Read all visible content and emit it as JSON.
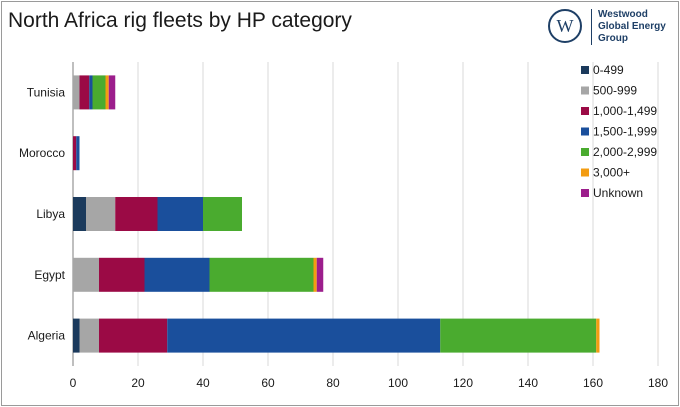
{
  "title": "North Africa rig fleets by HP category",
  "logo": {
    "mark": "W",
    "lines": [
      "Westwood",
      "Global Energy",
      "Group"
    ]
  },
  "chart_data": {
    "type": "bar",
    "orientation": "horizontal",
    "stacked": true,
    "title": "North Africa rig fleets by HP category",
    "categories": [
      "Tunisia",
      "Morocco",
      "Libya",
      "Egypt",
      "Algeria"
    ],
    "xlim": [
      0,
      180
    ],
    "xticks": [
      0,
      20,
      40,
      60,
      80,
      100,
      120,
      140,
      160,
      180
    ],
    "grid": "vertical",
    "legend_position": "right",
    "series": [
      {
        "name": "0-499",
        "color": "#1b3a5c",
        "values": [
          0,
          0,
          4,
          0,
          2
        ]
      },
      {
        "name": "500-999",
        "color": "#a6a6a6",
        "values": [
          2,
          0,
          9,
          8,
          6
        ]
      },
      {
        "name": "1,000-1,499",
        "color": "#9b0a45",
        "values": [
          3,
          1,
          13,
          14,
          21
        ]
      },
      {
        "name": "1,500-1,999",
        "color": "#1a4f9c",
        "values": [
          1,
          1,
          14,
          20,
          84
        ]
      },
      {
        "name": "2,000-2,999",
        "color": "#4aab2f",
        "values": [
          4,
          0,
          12,
          32,
          48
        ]
      },
      {
        "name": "3,000+",
        "color": "#f39c12",
        "values": [
          1,
          0,
          0,
          1,
          1
        ]
      },
      {
        "name": "Unknown",
        "color": "#9c1e8c",
        "values": [
          2,
          0,
          0,
          2,
          0
        ]
      }
    ]
  }
}
